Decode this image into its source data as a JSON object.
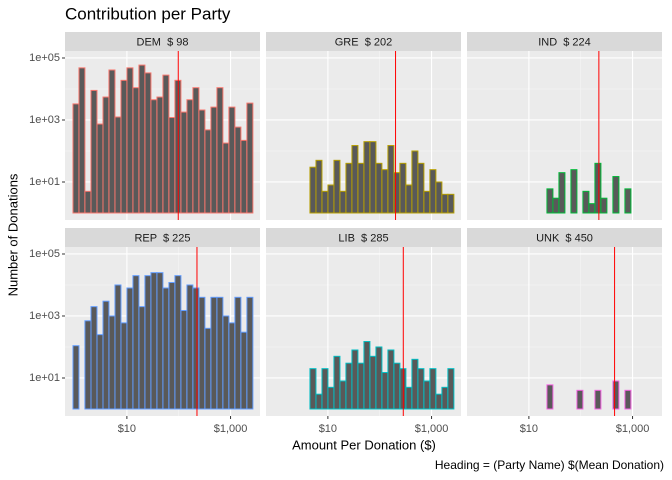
{
  "chart_data": {
    "type": "histogram",
    "title": "Contribution per Party",
    "xlabel": "Amount Per Donation ($)",
    "ylabel": "Number of Donations",
    "caption": "Heading = (Party Name) $(Mean Donation)",
    "log_x": true,
    "log_y": true,
    "grid": true,
    "fill": "#595959",
    "mean_line_color": "#ff0000",
    "xlim": [
      0.64,
      3700
    ],
    "ylim": [
      0.594,
      168000
    ],
    "xticks": [
      {
        "value": 10,
        "label": "$10"
      },
      {
        "value": 1000,
        "label": "$1,000"
      }
    ],
    "yticks": [
      {
        "value": 10,
        "label": "1e+01"
      },
      {
        "value": 1000,
        "label": "1e+03"
      },
      {
        "value": 100000,
        "label": "1e+05"
      }
    ],
    "bins": [
      0.912,
      1.19,
      1.55,
      2.03,
      2.65,
      3.46,
      4.51,
      5.89,
      7.69,
      10.03,
      13.09,
      17.09,
      22.3,
      29.1,
      38.0,
      49.6,
      64.7,
      84.5,
      110.3,
      144.0,
      187.9,
      245.3,
      320.2,
      418,
      546,
      712,
      929,
      1213,
      1584,
      2067,
      2698
    ],
    "panels": [
      {
        "heading": "DEM  $ 98",
        "mean": 98,
        "color": "#F8766D",
        "values": [
          3300,
          48000,
          5,
          9000,
          740,
          5500,
          41000,
          1250,
          19000,
          48000,
          11000,
          59000,
          33000,
          4500,
          5500,
          28000,
          1200,
          19000,
          1800,
          4500,
          11000,
          2100,
          480,
          2600,
          11000,
          180,
          2600,
          590,
          220,
          3500
        ]
      },
      {
        "heading": "GRE  $ 202",
        "mean": 202,
        "color": "#B79F00",
        "values": [
          0,
          0,
          0,
          0,
          1,
          1,
          30,
          50,
          5,
          8,
          50,
          5,
          40,
          150,
          40,
          200,
          200,
          40,
          25,
          150,
          20,
          40,
          8,
          100,
          40,
          5,
          25,
          10,
          4,
          4
        ]
      },
      {
        "heading": "IND  $ 224",
        "mean": 224,
        "color": "#00BA38",
        "values": [
          0,
          0,
          0,
          0,
          0,
          0,
          0,
          0,
          0,
          0,
          1,
          1,
          6,
          3,
          20,
          0,
          25,
          0,
          5,
          2,
          40,
          3,
          0,
          15,
          0,
          6,
          0,
          0,
          0,
          0
        ]
      },
      {
        "heading": "REP  $ 225",
        "mean": 225,
        "color": "#619CFF",
        "values": [
          110,
          1,
          700,
          2000,
          250,
          3000,
          1000,
          10000,
          600,
          8000,
          20000,
          2000,
          20000,
          25000,
          25000,
          8000,
          12000,
          20000,
          1500,
          10000,
          8000,
          4000,
          400,
          4000,
          4000,
          1000,
          600,
          4000,
          300,
          4000
        ]
      },
      {
        "heading": "LIB  $ 285",
        "mean": 285,
        "color": "#00BFC4",
        "values": [
          0,
          0,
          0,
          0,
          1,
          0,
          20,
          3,
          20,
          5,
          50,
          8,
          30,
          80,
          30,
          150,
          50,
          100,
          15,
          80,
          30,
          20,
          5,
          40,
          20,
          8,
          20,
          3,
          5,
          20
        ]
      },
      {
        "heading": "UNK  $ 450",
        "mean": 450,
        "color": "#F564E3",
        "values": [
          0,
          0,
          0,
          0,
          0,
          0,
          0,
          0,
          0,
          0,
          0,
          0,
          6,
          0,
          0,
          0,
          0,
          4,
          0,
          0,
          4,
          0,
          0,
          8,
          0,
          4,
          0,
          0,
          0,
          1
        ]
      }
    ]
  }
}
